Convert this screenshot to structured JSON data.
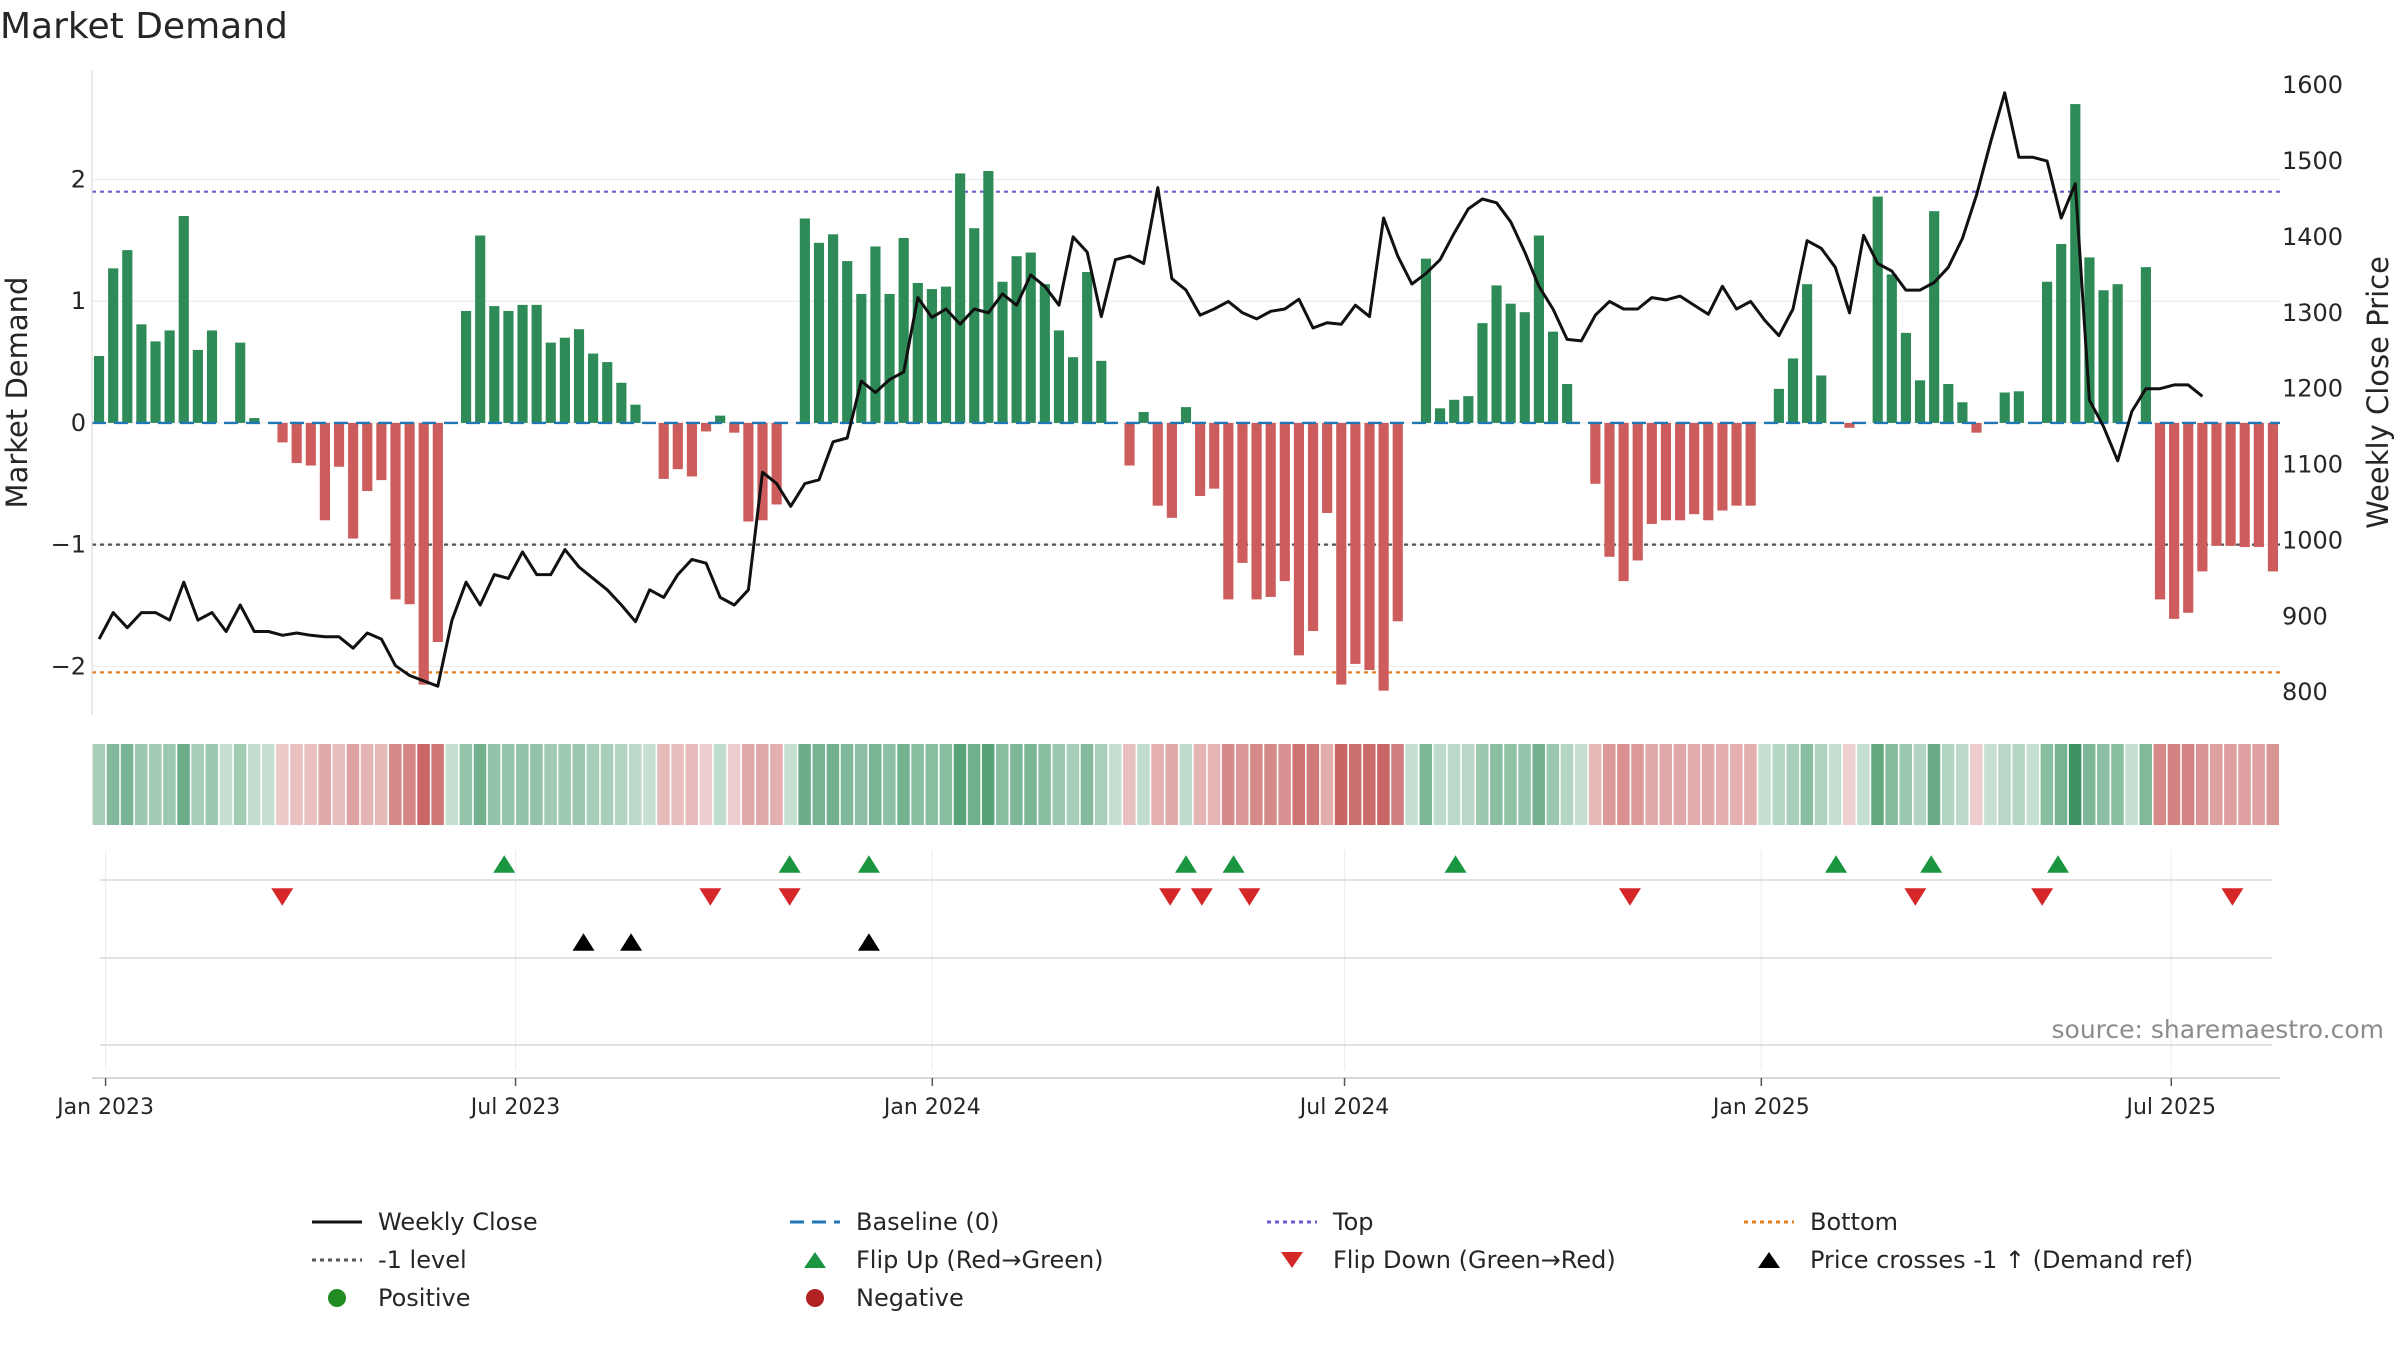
{
  "title": "Market Demand",
  "source": "source: sharemaestro.com",
  "colors": {
    "positive": "#2e8b57",
    "negative": "#cd5c5c",
    "price": "#111111",
    "baseline": "#1f77b4",
    "top": "#6a5acd",
    "bottom": "#e67e22",
    "minus1": "#555555",
    "flip_up": "#1a9641",
    "flip_down": "#d62728",
    "cross": "#000000"
  },
  "legend": [
    {
      "label": "Weekly Close",
      "symbol": "line",
      "color": "#111111"
    },
    {
      "label": "Baseline (0)",
      "symbol": "dash",
      "color": "#1f77b4"
    },
    {
      "label": "Top",
      "symbol": "dot",
      "color": "#6a5acd"
    },
    {
      "label": "Bottom",
      "symbol": "dot",
      "color": "#e67e22"
    },
    {
      "label": "-1 level",
      "symbol": "dot",
      "color": "#555555"
    },
    {
      "label": "Flip Up (Red→Green)",
      "symbol": "tri-up",
      "color": "#1a9641"
    },
    {
      "label": "Flip Down (Green→Red)",
      "symbol": "tri-down",
      "color": "#d62728"
    },
    {
      "label": "Price crosses -1 ↑ (Demand ref)",
      "symbol": "tri-up",
      "color": "#000000"
    },
    {
      "label": "Positive",
      "symbol": "circle",
      "color": "#228b22"
    },
    {
      "label": "Negative",
      "symbol": "circle",
      "color": "#b22222"
    }
  ],
  "chart_data": {
    "type": "bar",
    "ylabel": "Market Demand",
    "y2label": "Weekly Close Price",
    "ylim": [
      -2.4,
      2.9
    ],
    "y2lim": [
      770,
      1620
    ],
    "yticks": [
      -2,
      -1,
      0,
      1,
      2
    ],
    "yticklabels": [
      "−2",
      "−1",
      "0",
      "1",
      "2"
    ],
    "y2ticks": [
      800,
      900,
      1000,
      1100,
      1200,
      1300,
      1400,
      1500,
      1600
    ],
    "x_start": "2022-12-26",
    "x_end": "2025-08-18",
    "xticks": [
      "2023-01-01",
      "2023-07-01",
      "2024-01-01",
      "2024-07-01",
      "2025-01-01",
      "2025-07-01"
    ],
    "xticklabels": [
      "Jan 2023",
      "Jul 2023",
      "Jan 2024",
      "Jul 2024",
      "Jan 2025",
      "Jul 2025"
    ],
    "levels": {
      "baseline": 0,
      "top": 1.9,
      "bottom": -2.05,
      "minus1": -1
    },
    "series": [
      {
        "name": "Market Demand",
        "kind": "bar",
        "values": [
          0.55,
          1.27,
          1.42,
          0.81,
          0.67,
          0.76,
          1.7,
          0.6,
          0.76,
          0.0,
          0.66,
          0.04,
          0.0,
          -0.16,
          -0.33,
          -0.35,
          -0.8,
          -0.36,
          -0.95,
          -0.56,
          -0.47,
          -1.45,
          -1.49,
          -2.15,
          -1.8,
          0.0,
          0.92,
          1.54,
          0.96,
          0.92,
          0.97,
          0.97,
          0.66,
          0.7,
          0.77,
          0.57,
          0.5,
          0.33,
          0.15,
          0.0,
          -0.46,
          -0.38,
          -0.44,
          -0.07,
          0.06,
          -0.08,
          -0.81,
          -0.8,
          -0.67,
          0.0,
          1.68,
          1.48,
          1.55,
          1.33,
          1.06,
          1.45,
          1.06,
          1.52,
          1.15,
          1.1,
          1.12,
          2.05,
          1.6,
          2.07,
          1.16,
          1.37,
          1.4,
          1.14,
          0.76,
          0.54,
          1.24,
          0.51,
          0.0,
          -0.35,
          0.09,
          -0.68,
          -0.78,
          0.13,
          -0.6,
          -0.54,
          -1.45,
          -1.15,
          -1.45,
          -1.43,
          -1.3,
          -1.91,
          -1.71,
          -0.74,
          -2.15,
          -1.98,
          -2.03,
          -2.2,
          -1.63,
          0.0,
          1.35,
          0.12,
          0.19,
          0.22,
          0.82,
          1.13,
          0.98,
          0.91,
          1.54,
          0.75,
          0.32,
          0.0,
          -0.5,
          -1.1,
          -1.3,
          -1.13,
          -0.83,
          -0.8,
          -0.8,
          -0.75,
          -0.8,
          -0.72,
          -0.68,
          -0.68,
          0.0,
          0.28,
          0.53,
          1.14,
          0.39,
          0.0,
          -0.04,
          0.0,
          1.86,
          1.22,
          0.74,
          0.35,
          1.74,
          0.32,
          0.17,
          -0.08,
          0.0,
          0.25,
          0.26,
          0.0,
          1.16,
          1.47,
          2.62,
          1.36,
          1.09,
          1.14,
          0.0,
          1.28,
          -1.45,
          -1.61,
          -1.56,
          -1.22,
          -1.01,
          -1.01,
          -1.02,
          -1.02,
          -1.22
        ]
      },
      {
        "name": "Weekly Close",
        "kind": "line",
        "values": [
          870,
          905,
          885,
          905,
          905,
          895,
          945,
          895,
          905,
          880,
          915,
          880,
          880,
          875,
          878,
          875,
          873,
          873,
          858,
          878,
          870,
          835,
          822,
          815,
          808,
          895,
          945,
          915,
          955,
          950,
          985,
          955,
          955,
          988,
          965,
          950,
          935,
          915,
          893,
          935,
          925,
          955,
          975,
          970,
          925,
          915,
          935,
          1090,
          1075,
          1045,
          1075,
          1080,
          1130,
          1135,
          1210,
          1195,
          1212,
          1222,
          1320,
          1294,
          1305,
          1285,
          1305,
          1300,
          1325,
          1310,
          1350,
          1335,
          1310,
          1400,
          1380,
          1295,
          1370,
          1375,
          1365,
          1465,
          1345,
          1330,
          1297,
          1305,
          1315,
          1300,
          1292,
          1302,
          1305,
          1318,
          1280,
          1287,
          1285,
          1310,
          1295,
          1425,
          1375,
          1338,
          1352,
          1370,
          1405,
          1437,
          1450,
          1445,
          1420,
          1380,
          1335,
          1305,
          1265,
          1263,
          1297,
          1315,
          1305,
          1305,
          1320,
          1317,
          1322,
          1310,
          1298,
          1335,
          1305,
          1315,
          1290,
          1270,
          1305,
          1395,
          1385,
          1360,
          1300,
          1402,
          1365,
          1355,
          1330,
          1330,
          1340,
          1360,
          1398,
          1455,
          1525,
          1590,
          1505,
          1505,
          1500,
          1425,
          1470,
          1185,
          1150,
          1105,
          1170,
          1200,
          1200,
          1205,
          1205,
          1190
        ]
      }
    ],
    "flip_up": [
      "2023-06-26",
      "2023-10-30",
      "2023-12-04",
      "2024-04-22",
      "2024-05-13",
      "2024-08-19",
      "2025-02-03",
      "2025-03-17",
      "2025-05-12"
    ],
    "flip_down": [
      "2023-03-20",
      "2023-09-25",
      "2023-10-30",
      "2024-04-15",
      "2024-04-29",
      "2024-05-20",
      "2024-11-04",
      "2025-03-10",
      "2025-05-05",
      "2025-07-28"
    ],
    "price_cross": [
      "2023-07-31",
      "2023-08-21",
      "2023-12-04"
    ]
  }
}
